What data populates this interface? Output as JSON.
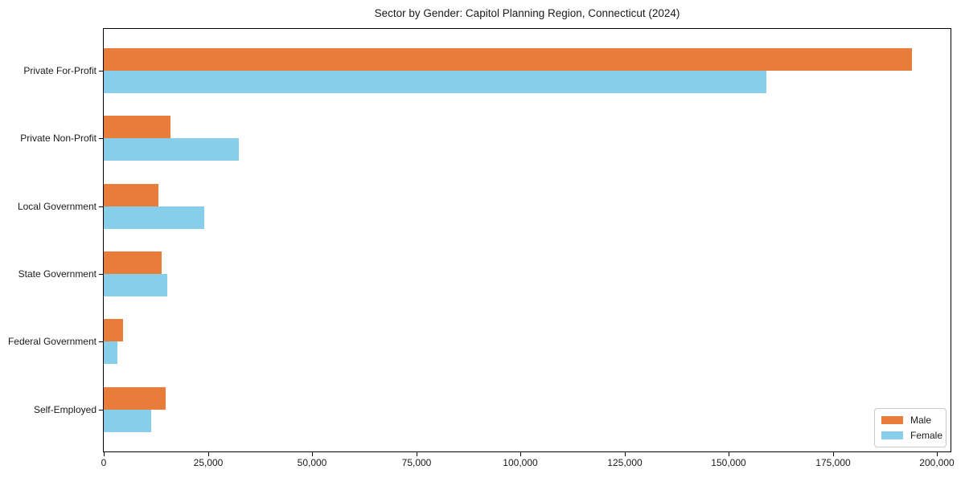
{
  "chart_data": {
    "type": "bar",
    "orientation": "horizontal",
    "title": "Sector by Gender: Capitol Planning Region, Connecticut (2024)",
    "categories": [
      "Private For-Profit",
      "Private Non-Profit",
      "Local Government",
      "State Government",
      "Federal Government",
      "Self-Employed"
    ],
    "series": [
      {
        "name": "Male",
        "color": "#e87d3b",
        "values": [
          194000,
          16000,
          13100,
          13900,
          4600,
          14900
        ]
      },
      {
        "name": "Female",
        "color": "#87ceeb",
        "values": [
          159000,
          32400,
          24100,
          15200,
          3200,
          11300
        ]
      }
    ],
    "xlabel": "",
    "ylabel": "",
    "xlim": [
      0,
      200000
    ],
    "x_tick_values": [
      0,
      25000,
      50000,
      75000,
      100000,
      125000,
      150000,
      175000,
      200000
    ],
    "x_tick_labels": [
      "0",
      "25,000",
      "50,000",
      "75,000",
      "100,000",
      "125,000",
      "150,000",
      "175,000",
      "200,000"
    ],
    "grid": false,
    "legend_position": "lower right"
  },
  "colors": {
    "male": "#e87d3b",
    "female": "#87ceeb",
    "axis": "#000000",
    "legend_border": "#c9c9c9",
    "background": "#ffffff"
  }
}
